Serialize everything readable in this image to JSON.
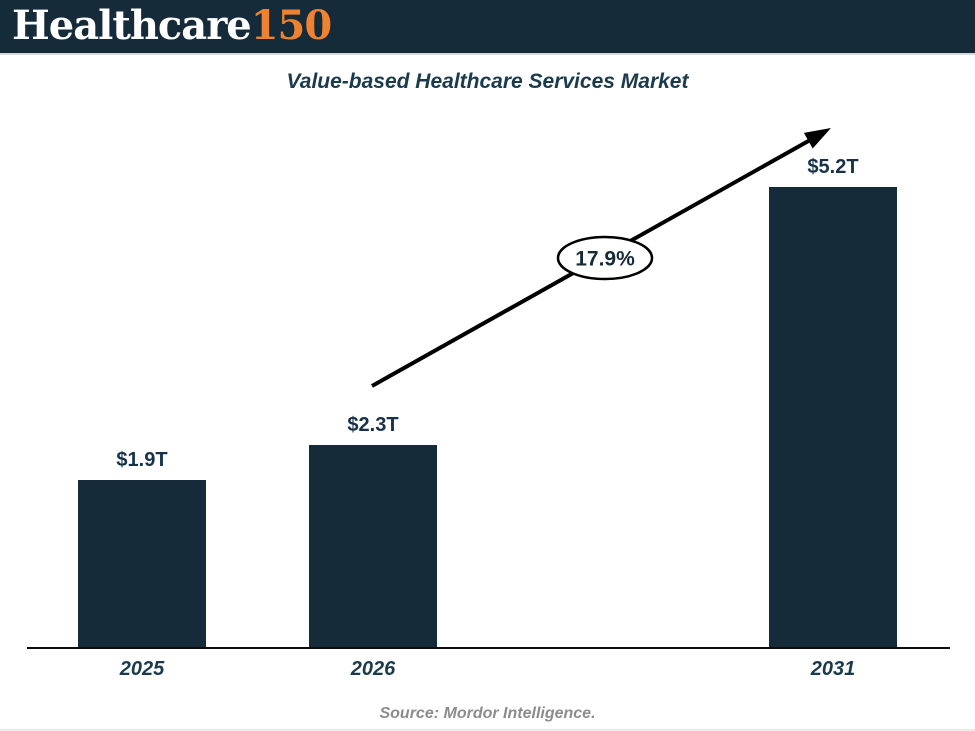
{
  "logo": {
    "text_white": "Healthcare",
    "text_orange": "150",
    "orange_color": "#ee8230",
    "navy_color": "#152b3a"
  },
  "chart_data": {
    "type": "bar",
    "title": "Value-based Healthcare Services Market",
    "categories": [
      "2025",
      "2026",
      "2031"
    ],
    "values": [
      1.9,
      2.3,
      5.2
    ],
    "value_labels": [
      "$1.9T",
      "$2.3T",
      "$5.2T"
    ],
    "annotation": {
      "growth_label": "17.9%",
      "shape": "ellipse",
      "arrow": "upward-trend-arrow"
    },
    "bar_color": "#152b3a",
    "label_color": "#1b3a4c",
    "xlabel": "",
    "ylabel": "",
    "ylim": [
      0,
      5.9
    ],
    "grid": false,
    "legend": false
  },
  "source": {
    "text": "Source: Mordor Intelligence."
  }
}
